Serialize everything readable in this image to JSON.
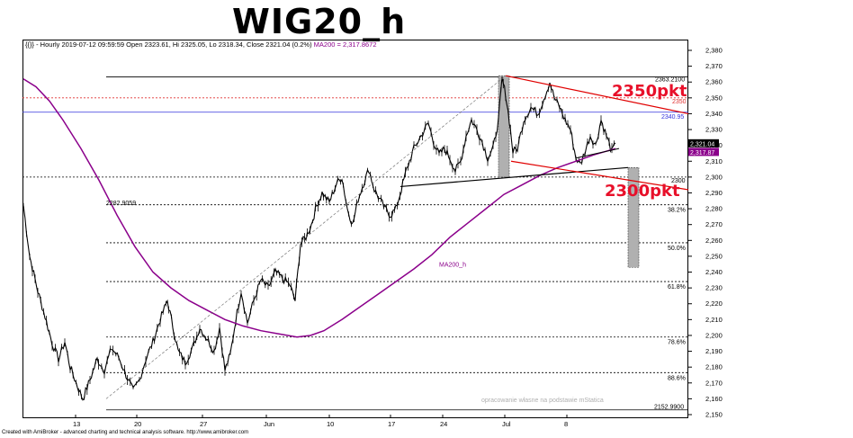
{
  "title": "WIG20_h",
  "info": {
    "text": "{{}} - Hourly 2019-07-12 09:59:59 Open 2323.61, Hi 2325.05, Lo 2318.34, Close 2321.04 (0.2%) ",
    "ma_text": "MA200 = 2,317.8672"
  },
  "footer": "Created with AmiBroker - advanced charting and technical analysis software. http://www.amibroker.com",
  "watermark": "opracowanie własne na podstawie mStatica",
  "colors": {
    "price": "#000000",
    "ma": "#8b008b",
    "channel": "#e00000",
    "blue_level": "#3333dd",
    "red_level": "#e03030",
    "annotation": "#e8102a",
    "shade": "#b0b0b0"
  },
  "chart_data": {
    "type": "line",
    "series": [
      {
        "name": "MA200_h",
        "role": "moving-average"
      }
    ],
    "ylim": [
      2150,
      2380
    ],
    "y_ticks": [
      "2,380",
      "2,370",
      "2,360",
      "2,350",
      "2,340",
      "2,330",
      "2,320",
      "2,310",
      "2,300",
      "2,290",
      "2,280",
      "2,270",
      "2,260",
      "2,250",
      "2,240",
      "2,230",
      "2,220",
      "2,210",
      "2,200",
      "2,190",
      "2,180",
      "2,170",
      "2,160",
      "2,150"
    ],
    "x_ticks": [
      "13",
      "20",
      "27",
      "Jun",
      "10",
      "17",
      "24",
      "Jul",
      "8"
    ],
    "last_close_label": "2,321.04",
    "ma_last_label": "2,317.87",
    "ma_label": "MA200_h",
    "fib_levels": [
      {
        "label": "38.2%",
        "value": 2282.5
      },
      {
        "label": "50.0%",
        "value": 2258.5
      },
      {
        "label": "61.8%",
        "value": 2234
      },
      {
        "label": "78.6%",
        "value": 2199
      },
      {
        "label": "88.6%",
        "value": 2176.5
      }
    ],
    "levels": [
      {
        "label": "2363.2100",
        "value": 2363.21
      },
      {
        "label": "2350",
        "value": 2350
      },
      {
        "label": "2340.95",
        "value": 2340.95
      },
      {
        "label": "2300",
        "value": 2300
      },
      {
        "label": "2282.9059",
        "value": 2282.9
      },
      {
        "label": "2152.9900",
        "value": 2152.99
      }
    ],
    "annotations": [
      "2350pkt",
      "2300pkt"
    ]
  }
}
